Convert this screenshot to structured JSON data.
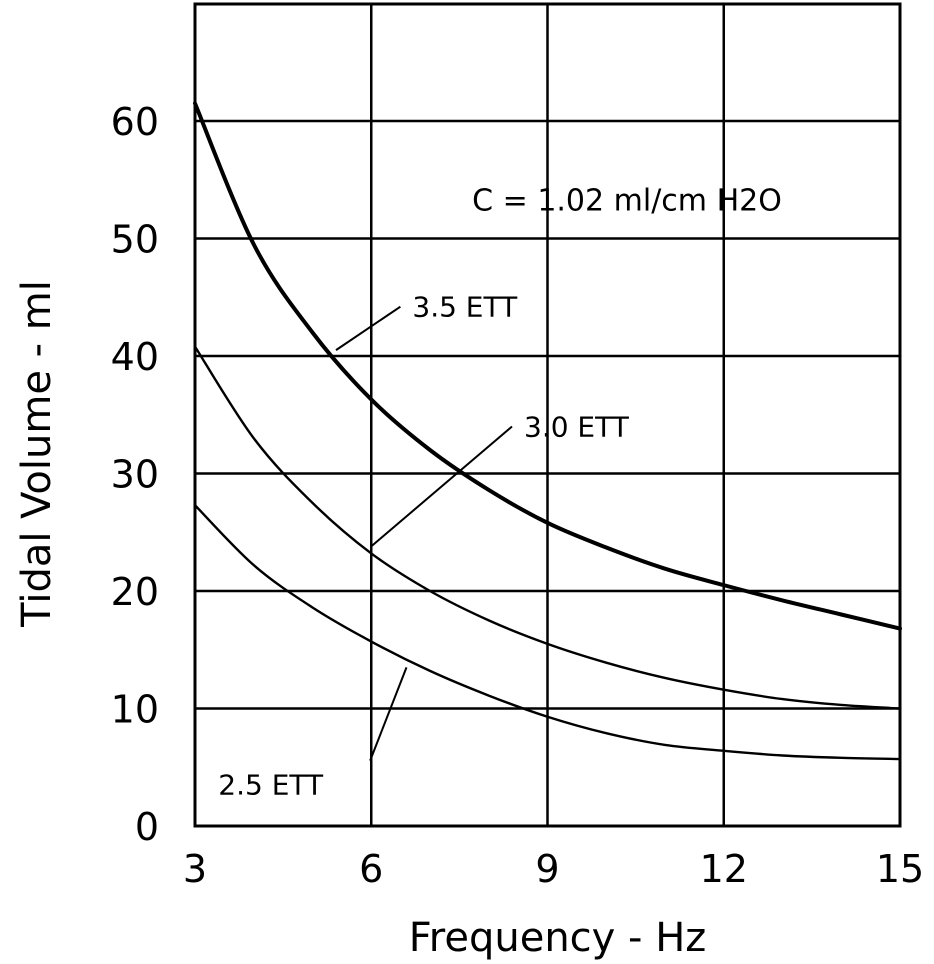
{
  "chart_data": {
    "type": "line",
    "title": "",
    "xlabel": "Frequency - Hz",
    "ylabel": "Tidal Volume - ml",
    "xlim": [
      3,
      15
    ],
    "ylim": [
      0,
      60
    ],
    "xticks": [
      3,
      6,
      9,
      12,
      15
    ],
    "xtick_labels": [
      "3",
      "6",
      "9",
      "12",
      "15"
    ],
    "yticks": [
      0,
      10,
      20,
      30,
      40,
      50,
      60
    ],
    "ytick_labels": [
      "0",
      "10",
      "20",
      "30",
      "40",
      "50",
      "60"
    ],
    "grid": true,
    "annotation": "C = 1.02 ml/cm H2O",
    "series": [
      {
        "name": "3.5 ETT",
        "line_weight": "bold",
        "x": [
          3,
          4,
          5,
          6,
          7,
          8,
          9,
          10,
          11,
          12,
          13,
          14,
          15
        ],
        "y": [
          61.5,
          49.5,
          42.0,
          36.3,
          32.0,
          28.6,
          25.8,
          23.7,
          21.9,
          20.5,
          19.2,
          18.0,
          16.8
        ]
      },
      {
        "name": "3.0 ETT",
        "line_weight": "normal",
        "x": [
          3,
          4,
          5,
          6,
          7,
          8,
          9,
          10,
          11,
          12,
          13,
          14,
          15
        ],
        "y": [
          40.8,
          33.0,
          27.5,
          23.2,
          20.0,
          17.5,
          15.5,
          13.9,
          12.6,
          11.6,
          10.8,
          10.3,
          10.0
        ]
      },
      {
        "name": "2.5 ETT",
        "line_weight": "normal",
        "x": [
          3,
          4,
          5,
          6,
          7,
          8,
          9,
          10,
          11,
          12,
          13,
          14,
          15
        ],
        "y": [
          27.3,
          22.2,
          18.6,
          15.7,
          13.2,
          11.1,
          9.3,
          7.9,
          6.9,
          6.4,
          6.0,
          5.8,
          5.7
        ]
      }
    ],
    "curve_labels": [
      {
        "text": "3.5 ETT",
        "series": "3.5 ETT",
        "point_x": 5.4,
        "point_y": 40.5,
        "text_x": 6.7,
        "text_y": 44.2
      },
      {
        "text": "3.0 ETT",
        "series": "3.0 ETT",
        "point_x": 6.0,
        "point_y": 23.8,
        "text_x": 8.6,
        "text_y": 34.0
      },
      {
        "text": "2.5 ETT",
        "series": "2.5 ETT",
        "point_x": 6.6,
        "point_y": 13.5,
        "text_x": 5.3,
        "text_y": 4.2
      }
    ]
  }
}
